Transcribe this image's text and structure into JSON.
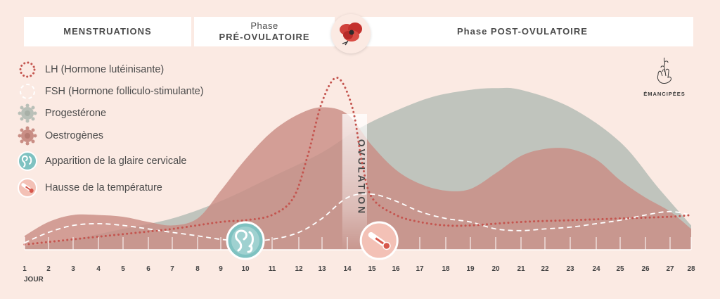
{
  "phases": {
    "menstruations": "MENSTRUATIONS",
    "pre_top": "Phase",
    "pre_bottom": "PRÉ-OVULATOIRE",
    "post": "Phase POST-OVULATOIRE"
  },
  "legend": [
    {
      "label": "LH (Hormone lutéinisante)",
      "icon": "dotted-circle-icon",
      "color": "#c4554f"
    },
    {
      "label": "FSH (Hormone folliculo-stimulante)",
      "icon": "dashed-circle-icon",
      "color": "#ffffff"
    },
    {
      "label": "Progestérone",
      "icon": "progesterone-molecule-icon",
      "color": "#b9c0b8"
    },
    {
      "label": "Oestrogènes",
      "icon": "estrogen-molecule-icon",
      "color": "#c98e85"
    },
    {
      "label": "Apparition de la glaire cervicale",
      "icon": "cervical-mucus-icon",
      "color": "#7fc2c1"
    },
    {
      "label": "Hausse de la température",
      "icon": "thermometer-icon",
      "color": "#e8a095"
    }
  ],
  "brand": {
    "name": "ÉMANCIPÉES"
  },
  "ovulation_label": "OVULATION",
  "chart_data": {
    "type": "area",
    "x_label": "JOUR",
    "xlim": [
      1,
      28
    ],
    "ylim": [
      0,
      100
    ],
    "days": [
      "1",
      "2",
      "3",
      "4",
      "5",
      "6",
      "7",
      "8",
      "9",
      "10",
      "11",
      "12",
      "13",
      "14",
      "15",
      "16",
      "17",
      "18",
      "19",
      "20",
      "21",
      "22",
      "23",
      "24",
      "25",
      "26",
      "27",
      "28"
    ],
    "series": [
      {
        "name": "Progestérone",
        "color": "#b9c0b8",
        "points": [
          [
            1,
            2
          ],
          [
            3,
            6
          ],
          [
            5,
            12
          ],
          [
            7,
            18
          ],
          [
            9,
            28
          ],
          [
            11,
            42
          ],
          [
            13,
            56
          ],
          [
            14.5,
            70
          ],
          [
            16,
            80
          ],
          [
            17.5,
            88
          ],
          [
            19,
            92
          ],
          [
            20,
            93
          ],
          [
            21,
            92
          ],
          [
            23,
            82
          ],
          [
            25,
            62
          ],
          [
            26.5,
            36
          ],
          [
            28,
            14
          ]
        ]
      },
      {
        "name": "Oestrogènes",
        "color": "#c98e85",
        "points": [
          [
            1,
            8
          ],
          [
            2,
            16
          ],
          [
            3,
            20
          ],
          [
            4,
            20
          ],
          [
            5,
            19
          ],
          [
            6,
            16
          ],
          [
            7,
            14
          ],
          [
            8,
            18
          ],
          [
            9,
            34
          ],
          [
            10,
            52
          ],
          [
            11,
            68
          ],
          [
            12,
            78
          ],
          [
            13,
            82
          ],
          [
            14,
            78
          ],
          [
            15,
            60
          ],
          [
            16,
            46
          ],
          [
            17,
            38
          ],
          [
            18,
            34
          ],
          [
            19,
            35
          ],
          [
            20,
            44
          ],
          [
            21,
            54
          ],
          [
            22,
            58
          ],
          [
            23,
            58
          ],
          [
            24,
            52
          ],
          [
            25,
            40
          ],
          [
            26,
            30
          ],
          [
            27,
            22
          ],
          [
            28,
            12
          ]
        ]
      },
      {
        "name": "LH (Hormone lutéinisante)",
        "color": "#c4554f",
        "points": [
          [
            1,
            3
          ],
          [
            3,
            6
          ],
          [
            5,
            9
          ],
          [
            7,
            12
          ],
          [
            9,
            16
          ],
          [
            10,
            17
          ],
          [
            11,
            20
          ],
          [
            11.8,
            30
          ],
          [
            12.4,
            55
          ],
          [
            13,
            85
          ],
          [
            13.6,
            99
          ],
          [
            14.2,
            82
          ],
          [
            14.6,
            50
          ],
          [
            15,
            30
          ],
          [
            16,
            20
          ],
          [
            17,
            16
          ],
          [
            18,
            14
          ],
          [
            19,
            14
          ],
          [
            21,
            16
          ],
          [
            23,
            17
          ],
          [
            25,
            18
          ],
          [
            27,
            19
          ],
          [
            28,
            20
          ]
        ]
      },
      {
        "name": "FSH (Hormone folliculo-stimulante)",
        "color": "#ffffff",
        "points": [
          [
            1,
            4
          ],
          [
            2,
            10
          ],
          [
            3,
            14
          ],
          [
            4,
            15
          ],
          [
            5,
            14
          ],
          [
            6,
            12
          ],
          [
            7,
            10
          ],
          [
            8,
            8
          ],
          [
            9,
            6
          ],
          [
            10,
            5
          ],
          [
            11,
            6
          ],
          [
            12,
            10
          ],
          [
            13,
            18
          ],
          [
            14,
            30
          ],
          [
            15,
            32
          ],
          [
            16,
            28
          ],
          [
            17,
            22
          ],
          [
            18,
            18
          ],
          [
            19,
            16
          ],
          [
            20,
            12
          ],
          [
            21,
            11
          ],
          [
            22,
            12
          ],
          [
            23,
            13
          ],
          [
            24,
            15
          ],
          [
            25,
            17
          ],
          [
            26,
            20
          ],
          [
            27,
            22
          ],
          [
            28,
            20
          ]
        ]
      }
    ],
    "markers": [
      {
        "label": "Apparition de la glaire cervicale",
        "day": 10
      },
      {
        "label": "Hausse de la température",
        "day": 15.3
      }
    ],
    "ovulation_band": [
      13.8,
      14.8
    ]
  }
}
